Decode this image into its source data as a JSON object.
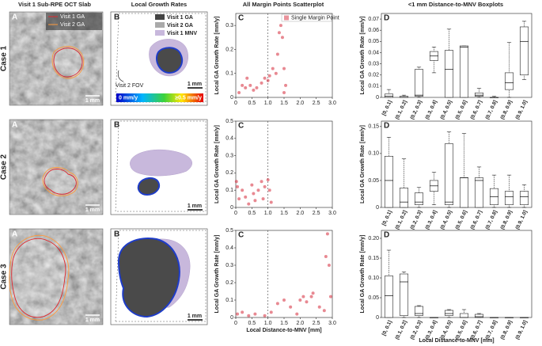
{
  "column_headers": [
    "Visit 1 Sub-RPE OCT Slab",
    "Local Growth Rates",
    "All Margin Points Scatterplot",
    "<1 mm Distance-to-MNV Boxplots"
  ],
  "rows": [
    {
      "case": "Case 1",
      "panel_a": {
        "letter": "A",
        "legend": [
          "Visit 1 GA",
          "Visit 2 GA"
        ],
        "scale": "1 mm"
      },
      "panel_b": {
        "letter": "B",
        "legend": [
          "Visit 1 GA",
          "Visit 2 GA",
          "Visit 1 MNV"
        ],
        "fov": "Visit 2 FOV",
        "scale": "1 mm",
        "colorbar": [
          "0 mm/y",
          "≥0.5 mm/y"
        ]
      }
    },
    {
      "case": "Case 2",
      "panel_a": {
        "letter": "A",
        "scale": "1 mm"
      },
      "panel_b": {
        "letter": "B",
        "scale": "1 mm"
      }
    },
    {
      "case": "Case 3",
      "panel_a": {
        "letter": "A",
        "scale": "1 mm"
      },
      "panel_b": {
        "letter": "B",
        "scale": "1 mm"
      }
    }
  ],
  "chart_data": [
    {
      "type": "scatter",
      "panel": "C",
      "ylabel": "Local GA Growth Rate [mm/y]",
      "legend": "Single Margin Point",
      "color": "#d62839",
      "xlim": [
        0,
        3
      ],
      "xticks": [
        0,
        0.5,
        {
          "value": 1,
          "label": "1.0"
        },
        1.5,
        {
          "value": 2,
          "label": "2.0"
        },
        2.5,
        {
          "value": 3,
          "label": "3.0"
        }
      ],
      "ylim": [
        0,
        0.35
      ],
      "yticks": [
        0,
        0.1,
        0.2,
        0.3
      ],
      "vline": 1,
      "x": [
        0.1,
        0.2,
        0.3,
        0.35,
        0.45,
        0.55,
        0.65,
        0.8,
        0.9,
        1.0,
        1.05,
        1.15,
        1.25,
        1.3,
        1.35,
        1.4,
        1.45,
        1.5,
        1.55,
        1.5
      ],
      "values": [
        0.02,
        0.05,
        0.04,
        0.08,
        0.05,
        0.03,
        0.04,
        0.06,
        0.08,
        0.07,
        0.09,
        0.12,
        0.1,
        0.18,
        0.27,
        0.3,
        0.25,
        0.12,
        0.05,
        0.02
      ]
    },
    {
      "type": "box",
      "panel": "D",
      "ylabel": "Local GA Growth Rate [mm/y]",
      "categories": [
        "[0, 0.1]",
        "(0.1, 0.2]",
        "(0.2, 0.3]",
        "(0.3, 0.4]",
        "(0.4, 0.5]",
        "(0.5, 0.6]",
        "(0.6, 0.7]",
        "(0.7, 0.8]",
        "(0.8, 0.9]",
        "(0.9, 1.0]"
      ],
      "ylim": [
        0,
        0.075
      ],
      "yticks": [
        0,
        0.01,
        0.02,
        0.03,
        0.04,
        0.05,
        0.06,
        0.07
      ],
      "whisker_low": [
        0,
        0,
        0,
        0.022,
        0,
        0,
        0,
        0,
        0,
        0.016
      ],
      "q1": [
        0,
        0,
        0.001,
        0.033,
        0,
        0,
        0.001,
        0,
        0.007,
        0.02
      ],
      "median": [
        0.001,
        0,
        0.002,
        0.037,
        0.025,
        0.045,
        0.002,
        0,
        0.013,
        0.05
      ],
      "q3": [
        0.003,
        0.001,
        0.025,
        0.041,
        0.042,
        0.046,
        0.004,
        0,
        0.022,
        0.063
      ],
      "whisker_high": [
        0.007,
        0.002,
        0.027,
        0.045,
        0.061,
        0.046,
        0.008,
        0.001,
        0.049,
        0.068
      ]
    },
    {
      "type": "scatter",
      "panel": "C",
      "ylabel": "Local GA Growth Rate [mm/y]",
      "color": "#d62839",
      "xlim": [
        0,
        3
      ],
      "xticks": [
        0,
        0.5,
        {
          "value": 1,
          "label": "1.0"
        },
        1.5,
        {
          "value": 2,
          "label": "2.0"
        },
        2.5,
        {
          "value": 3,
          "label": "3.0"
        }
      ],
      "ylim": [
        0,
        0.5
      ],
      "yticks": [
        0,
        0.1,
        0.2,
        0.3,
        0.4,
        0.5
      ],
      "vline": 1,
      "x": [
        0.02,
        0.05,
        0.1,
        0.2,
        0.3,
        0.4,
        0.5,
        0.55,
        0.6,
        0.7,
        0.8,
        0.85,
        0.9,
        1.0,
        1.05,
        1.1
      ],
      "values": [
        0.15,
        0.12,
        0.05,
        0.1,
        0.06,
        0.02,
        0.13,
        0.08,
        0.04,
        0.1,
        0.15,
        0.05,
        0.12,
        0.16,
        0.1,
        0.03
      ]
    },
    {
      "type": "box",
      "panel": "D",
      "ylabel": "Local GA Growth Rate [mm/y]",
      "categories": [
        "[0, 0.1]",
        "(0.1, 0.2]",
        "(0.2, 0.3]",
        "(0.3, 0.4]",
        "(0.4, 0.5]",
        "(0.5, 0.6]",
        "(0.6, 0.7]",
        "(0.7, 0.8]",
        "(0.8, 0.9]",
        "(0.9, 1.0]"
      ],
      "ylim": [
        0,
        0.16
      ],
      "yticks": [
        0,
        0.05,
        {
          "value": 0.1,
          "label": "0.10"
        },
        0.15
      ],
      "whisker_low": [
        0,
        0,
        0,
        0.005,
        0,
        0,
        0,
        0,
        0,
        0
      ],
      "q1": [
        0,
        0,
        0.005,
        0.03,
        0.005,
        0,
        0,
        0.005,
        0.005,
        0.005
      ],
      "median": [
        0.05,
        0.01,
        0.01,
        0.04,
        0.01,
        0.055,
        0.05,
        0.02,
        0.02,
        0.02
      ],
      "q3": [
        0.095,
        0.036,
        0.027,
        0.05,
        0.118,
        0.055,
        0.055,
        0.035,
        0.03,
        0.03
      ],
      "whisker_high": [
        0.13,
        0.09,
        0.037,
        0.065,
        0.14,
        0.137,
        0.075,
        0.06,
        0.06,
        0.042
      ]
    },
    {
      "type": "scatter",
      "panel": "C",
      "ylabel": "Local GA Growth Rate [mm/y]",
      "xlabel": "Local Distance-to-MNV [mm]",
      "color": "#d62839",
      "xlim": [
        0,
        3
      ],
      "xticks": [
        0,
        0.5,
        {
          "value": 1,
          "label": "1.0"
        },
        1.5,
        {
          "value": 2,
          "label": "2.0"
        },
        2.5,
        {
          "value": 3,
          "label": "3.0"
        }
      ],
      "ylim": [
        0,
        0.5
      ],
      "yticks": [
        0,
        0.1,
        0.2,
        0.3,
        0.4,
        0.5
      ],
      "vline": 1,
      "x": [
        0.05,
        0.2,
        0.4,
        0.6,
        0.9,
        1.1,
        1.3,
        1.5,
        1.7,
        1.9,
        2.0,
        2.1,
        2.2,
        2.35,
        2.4,
        2.6,
        2.75,
        2.8,
        2.85,
        2.9,
        2.95
      ],
      "values": [
        0.02,
        0.03,
        0.01,
        0.02,
        0.01,
        0.03,
        0.08,
        0.1,
        0.06,
        0.02,
        0.1,
        0.12,
        0.09,
        0.12,
        0.14,
        0.06,
        0.04,
        0.35,
        0.48,
        0.3,
        0.12
      ]
    },
    {
      "type": "box",
      "panel": "D",
      "ylabel": "Local GA Growth Rate [mm/y]",
      "xlabel": "Local Distance-to-MNV [mm]",
      "categories": [
        "[0, 0.1]",
        "(0.1, 0.2]",
        "(0.2, 0.3]",
        "(0.3, 0.4]",
        "(0.4, 0.5]",
        "(0.5, 0.6]",
        "(0.6, 0.7]",
        "(0.7, 0.8]",
        "(0.8, 0.9]",
        "(0.9, 1.0]"
      ],
      "ylim": [
        0,
        0.22
      ],
      "yticks": [
        0,
        0.05,
        {
          "value": 0.1,
          "label": "0.10"
        },
        0.15,
        {
          "value": 0.2,
          "label": "0.20"
        }
      ],
      "whisker_low": [
        0,
        0,
        0,
        0,
        0,
        0,
        0,
        0,
        0,
        0
      ],
      "q1": [
        0,
        0.005,
        0.005,
        0,
        0.005,
        0,
        0,
        0,
        0,
        0
      ],
      "median": [
        0.055,
        0.09,
        0.01,
        0,
        0.01,
        0,
        0.002,
        0,
        0,
        0
      ],
      "q3": [
        0.105,
        0.11,
        0.028,
        0,
        0.018,
        0.01,
        0.008,
        0,
        0,
        0
      ],
      "whisker_high": [
        0.17,
        0.115,
        0.03,
        0,
        0.02,
        0.02,
        0.01,
        0,
        0,
        0
      ]
    }
  ]
}
